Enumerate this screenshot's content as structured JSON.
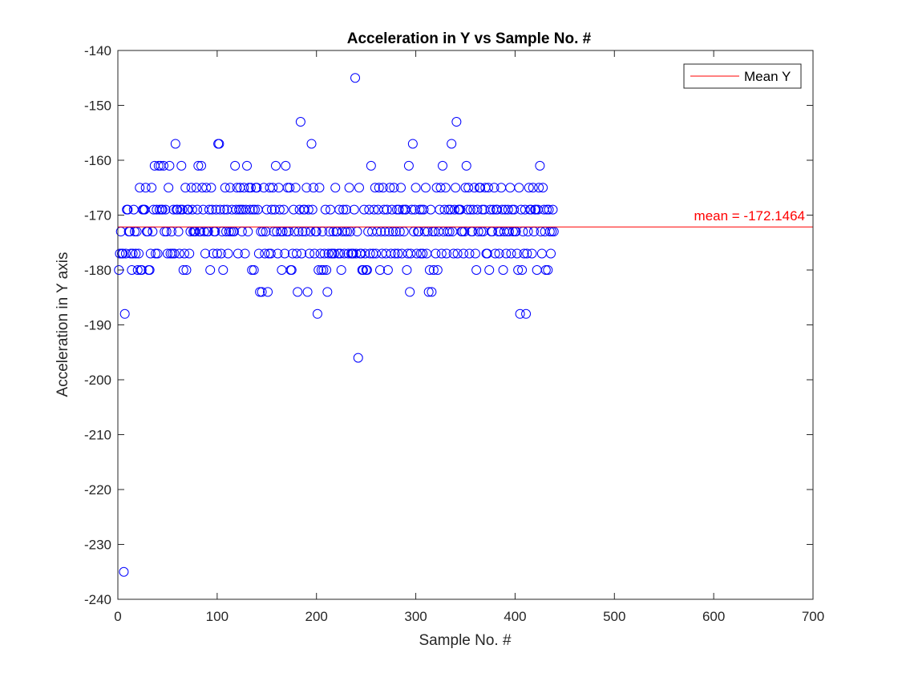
{
  "chart_data": {
    "type": "scatter",
    "title": "Acceleration in Y vs Sample No. #",
    "xlabel": "Sample No. #",
    "ylabel": "Acceleration in Y axis",
    "xlim": [
      0,
      700
    ],
    "ylim": [
      -240,
      -140
    ],
    "xticks": [
      0,
      100,
      200,
      300,
      400,
      500,
      600,
      700
    ],
    "yticks": [
      -140,
      -150,
      -160,
      -170,
      -180,
      -190,
      -200,
      -210,
      -220,
      -230,
      -240
    ],
    "grid": false,
    "legend_position": "top-right",
    "marker": "circle-open",
    "colors": {
      "points": "#0000ff",
      "mean_line": "#ff0000"
    },
    "series": [
      {
        "values": [
          -180,
          -177,
          -173,
          -177,
          -177,
          -235,
          -188,
          -177,
          -169,
          -169,
          -173,
          -173,
          -177,
          -180,
          -177,
          -169,
          -173,
          -177,
          -173,
          -180,
          -177,
          -165,
          -180,
          -180,
          -169,
          -169,
          -169,
          -165,
          -173,
          -173,
          -180,
          -180,
          -177,
          -165,
          -173,
          -169,
          -161,
          -177,
          -169,
          -177,
          -161,
          -169,
          -161,
          -169,
          -169,
          -161,
          -173,
          -169,
          -173,
          -177,
          -165,
          -161,
          -177,
          -173,
          -177,
          -169,
          -177,
          -157,
          -169,
          -169,
          -173,
          -177,
          -169,
          -161,
          -169,
          -180,
          -177,
          -165,
          -180,
          -169,
          -169,
          -177,
          -173,
          -165,
          -169,
          -173,
          -173,
          -173,
          -165,
          -169,
          -161,
          -173,
          -173,
          -161,
          -165,
          -169,
          -173,
          -177,
          -165,
          -173,
          -173,
          -169,
          -180,
          -165,
          -169,
          -177,
          -173,
          -173,
          -169,
          -177,
          -157,
          -157,
          -169,
          -177,
          -173,
          -180,
          -169,
          -165,
          -173,
          -169,
          -177,
          -173,
          -165,
          -173,
          -169,
          -173,
          -173,
          -161,
          -169,
          -165,
          -177,
          -169,
          -165,
          -169,
          -173,
          -169,
          -165,
          -177,
          -169,
          -161,
          -173,
          -165,
          -169,
          -165,
          -180,
          -169,
          -180,
          -169,
          -165,
          -165,
          -169,
          -177,
          -184,
          -173,
          -184,
          -173,
          -165,
          -177,
          -173,
          -169,
          -184,
          -177,
          -165,
          -177,
          -169,
          -165,
          -173,
          -169,
          -161,
          -173,
          -177,
          -165,
          -169,
          -173,
          -180,
          -173,
          -169,
          -177,
          -161,
          -173,
          -165,
          -173,
          -165,
          -180,
          -180,
          -177,
          -169,
          -173,
          -165,
          -177,
          -184,
          -173,
          -169,
          -153,
          -177,
          -173,
          -169,
          -169,
          -173,
          -165,
          -184,
          -169,
          -177,
          -173,
          -157,
          -169,
          -165,
          -177,
          -173,
          -173,
          -188,
          -180,
          -165,
          -177,
          -180,
          -173,
          -180,
          -177,
          -169,
          -180,
          -184,
          -177,
          -173,
          -169,
          -177,
          -177,
          -173,
          -177,
          -165,
          -173,
          -173,
          -177,
          -169,
          -177,
          -180,
          -173,
          -169,
          -177,
          -173,
          -169,
          -173,
          -177,
          -165,
          -173,
          -177,
          -177,
          -177,
          -169,
          -145,
          -177,
          -173,
          -196,
          -165,
          -177,
          -177,
          -180,
          -180,
          -169,
          -177,
          -180,
          -180,
          -173,
          -169,
          -177,
          -161,
          -173,
          -177,
          -169,
          -165,
          -177,
          -173,
          -169,
          -165,
          -180,
          -173,
          -177,
          -165,
          -169,
          -173,
          -177,
          -169,
          -180,
          -173,
          -165,
          -177,
          -169,
          -173,
          -165,
          -177,
          -173,
          -169,
          -177,
          -169,
          -173,
          -165,
          -177,
          -169,
          -173,
          -169,
          -169,
          -180,
          -177,
          -161,
          -184,
          -177,
          -169,
          -157,
          -173,
          -169,
          -165,
          -177,
          -173,
          -173,
          -169,
          -177,
          -169,
          -177,
          -169,
          -173,
          -165,
          -177,
          -173,
          -184,
          -180,
          -169,
          -184,
          -173,
          -180,
          -173,
          -177,
          -165,
          -180,
          -173,
          -169,
          -165,
          -177,
          -161,
          -173,
          -169,
          -165,
          -177,
          -173,
          -169,
          -173,
          -169,
          -157,
          -173,
          -177,
          -169,
          -165,
          -153,
          -177,
          -169,
          -169,
          -169,
          -173,
          -173,
          -177,
          -173,
          -165,
          -161,
          -169,
          -165,
          -177,
          -169,
          -173,
          -173,
          -169,
          -165,
          -177,
          -180,
          -169,
          -173,
          -165,
          -165,
          -173,
          -169,
          -173,
          -169,
          -165,
          -177,
          -177,
          -165,
          -180,
          -169,
          -173,
          -173,
          -169,
          -165,
          -177,
          -169,
          -169,
          -173,
          -177,
          -173,
          -165,
          -169,
          -180,
          -173,
          -169,
          -177,
          -173,
          -169,
          -173,
          -165,
          -177,
          -169,
          -173,
          -169,
          -173,
          -173,
          -177,
          -180,
          -165,
          -188,
          -169,
          -180,
          -173,
          -177,
          -169,
          -188,
          -177,
          -173,
          -165,
          -169,
          -169,
          -177,
          -165,
          -173,
          -169,
          -169,
          -180,
          -169,
          -165,
          -161,
          -173,
          -177,
          -165,
          -169,
          -173,
          -180,
          -169,
          -180,
          -169,
          -173,
          -177,
          -173,
          -169,
          -173
        ]
      }
    ],
    "mean_line": {
      "value": -172.1464,
      "label": "mean = -172.1464",
      "legend_label": "Mean Y"
    }
  }
}
